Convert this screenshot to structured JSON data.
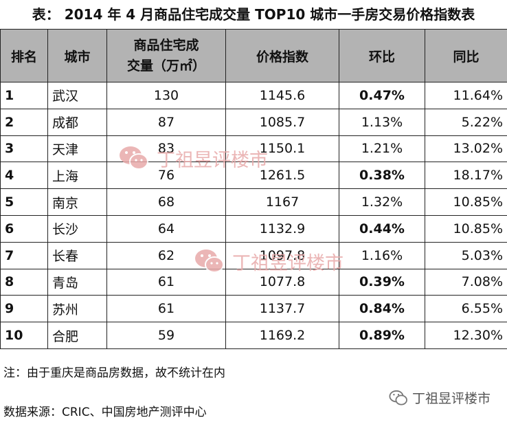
{
  "title": "表：  2014 年 4 月商品住宅成交量 TOP10 城市一手房交易价格指数表",
  "table": {
    "headers": {
      "rank": "排名",
      "city": "城市",
      "volume_line1": "商品住宅成",
      "volume_line2": "交量（万㎡）",
      "price_index": "价格指数",
      "mom": "环比",
      "yoy": "同比"
    },
    "rows": [
      {
        "rank": "1",
        "city": "武汉",
        "volume": "130",
        "price": "1145.6",
        "mom": "0.47%",
        "yoy": "11.64%"
      },
      {
        "rank": "2",
        "city": "成都",
        "volume": "87",
        "price": "1085.7",
        "mom": "1.13%",
        "yoy": "5.22%"
      },
      {
        "rank": "3",
        "city": "天津",
        "volume": "83",
        "price": "1150.1",
        "mom": "1.21%",
        "yoy": "13.02%"
      },
      {
        "rank": "4",
        "city": "上海",
        "volume": "76",
        "price": "1261.5",
        "mom": "0.38%",
        "yoy": "18.17%"
      },
      {
        "rank": "5",
        "city": "南京",
        "volume": "68",
        "price": "1167",
        "mom": "1.32%",
        "yoy": "10.85%"
      },
      {
        "rank": "6",
        "city": "长沙",
        "volume": "64",
        "price": "1132.9",
        "mom": "0.44%",
        "yoy": "10.85%"
      },
      {
        "rank": "7",
        "city": "长春",
        "volume": "62",
        "price": "1097.8",
        "mom": "1.16%",
        "yoy": "5.03%"
      },
      {
        "rank": "8",
        "city": "青岛",
        "volume": "61",
        "price": "1077.8",
        "mom": "0.39%",
        "yoy": "7.08%"
      },
      {
        "rank": "9",
        "city": "苏州",
        "volume": "61",
        "price": "1137.7",
        "mom": "0.84%",
        "yoy": "6.55%"
      },
      {
        "rank": "10",
        "city": "合肥",
        "volume": "59",
        "price": "1169.2",
        "mom": "0.89%",
        "yoy": "12.30%"
      }
    ],
    "bold_mom_rows": [
      "1",
      "4",
      "6",
      "8",
      "9",
      "10"
    ]
  },
  "note": "注：由于重庆是商品房数据，故不统计在内",
  "source": "数据来源：CRIC、中国房地产测评中心",
  "watermark": {
    "text": "丁祖昱评楼市",
    "icon": "wechat-icon",
    "color": "#e8aaaa"
  },
  "brand": {
    "text": "丁祖昱评楼市",
    "icon": "wechat-icon"
  }
}
